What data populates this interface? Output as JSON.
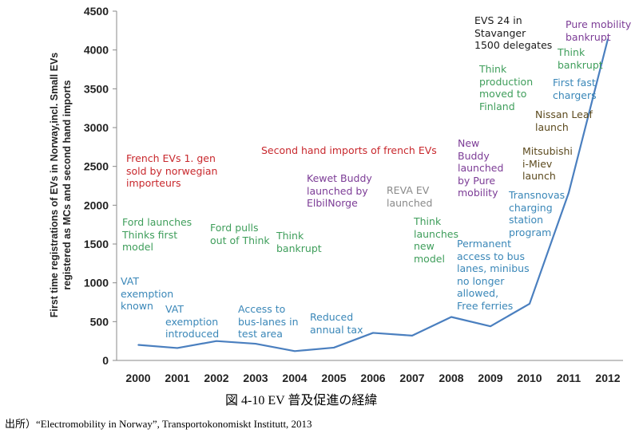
{
  "chart_data": {
    "type": "line",
    "ylabel": "First time registrations of EVs in  Norway,incl. Small EVs registered as MCs and second hand imports",
    "ylim": [
      0,
      4500
    ],
    "yticks": [
      0,
      500,
      1000,
      1500,
      2000,
      2500,
      3000,
      3500,
      4000,
      4500
    ],
    "x": [
      2000,
      2001,
      2002,
      2003,
      2004,
      2005,
      2006,
      2007,
      2008,
      2009,
      2010,
      2011,
      2012
    ],
    "values": [
      200,
      160,
      250,
      215,
      120,
      165,
      355,
      320,
      560,
      440,
      730,
      2160,
      4140
    ],
    "line_color": "#4a7fbf",
    "grid": false,
    "annotations": [
      {
        "text": "French EVs 1. gen\nsold by norwegian\nimporteurs",
        "color": "#c8282d"
      },
      {
        "text": "Second hand imports of french EVs",
        "color": "#c8282d"
      },
      {
        "text": "Ford launches\nThinks first\nmodel",
        "color": "#3f9e5b"
      },
      {
        "text": "Ford pulls\nout of Think",
        "color": "#3f9e5b"
      },
      {
        "text": "Think\nbankrupt",
        "color": "#3f9e5b"
      },
      {
        "text": "VAT\nexemption\nknown",
        "color": "#3a87b8"
      },
      {
        "text": "VAT\nexemption\nintroduced",
        "color": "#3a87b8"
      },
      {
        "text": "Access to\nbus-lanes in\ntest area",
        "color": "#3a87b8"
      },
      {
        "text": "Reduced\nannual tax",
        "color": "#3a87b8"
      },
      {
        "text": "Kewet Buddy\nlaunched by\nElbilNorge",
        "color": "#7c3c96"
      },
      {
        "text": "REVA EV\nlaunched",
        "color": "#8a8a8a"
      },
      {
        "text": "Think\nlaunches\nnew\nmodel",
        "color": "#3f9e5b"
      },
      {
        "text": "New\nBuddy\nlaunched\nby Pure\nmobility",
        "color": "#7c3c96"
      },
      {
        "text": "Permanent\naccess to bus\nlanes, minibus\nno longer\nallowed,\nFree ferries",
        "color": "#3a87b8"
      },
      {
        "text": "EVS 24 in\nStavanger\n1500 delegates",
        "color": "#1a1a1a"
      },
      {
        "text": "Think\nproduction\nmoved to\nFinland",
        "color": "#3f9e5b"
      },
      {
        "text": "Mitsubishi\ni-Miev\nlaunch",
        "color": "#5c4a1e"
      },
      {
        "text": "Transnovas\ncharging\nstation\nprogram",
        "color": "#3a87b8"
      },
      {
        "text": "Nissan Leaf\nlaunch",
        "color": "#5c4a1e"
      },
      {
        "text": "First fast\nchargers",
        "color": "#3a87b8"
      },
      {
        "text": "Think\nbankrupt",
        "color": "#3f9e5b"
      },
      {
        "text": "Pure mobility\nbankrupt",
        "color": "#7c3c96"
      }
    ]
  },
  "caption": "図  4-10      EV 普及促進の経緯",
  "source": "出所）“Electromobility in Norway”, Transportokonomiskt Institutt, 2013"
}
